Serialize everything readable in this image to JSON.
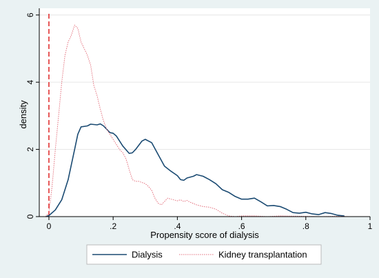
{
  "chart_data": {
    "type": "line",
    "xlabel": "Propensity score of dialysis",
    "ylabel": "density",
    "xlim": [
      -0.03,
      1.0
    ],
    "ylim": [
      0,
      6.2
    ],
    "x_ticks": [
      "0",
      ".2",
      ".4",
      ".6",
      ".8",
      "1"
    ],
    "y_ticks": [
      "0",
      "2",
      "4",
      "6"
    ],
    "grid": "horizontal",
    "legend_position": "bottom",
    "reference_line": {
      "x": 0,
      "style": "dashed",
      "color": "#e03030"
    },
    "series": [
      {
        "name": "Dialysis",
        "color": "#1a4a72",
        "style": "solid",
        "points": [
          [
            -0.01,
            0.0
          ],
          [
            0.0,
            0.03
          ],
          [
            0.02,
            0.2
          ],
          [
            0.04,
            0.5
          ],
          [
            0.06,
            1.1
          ],
          [
            0.08,
            2.0
          ],
          [
            0.09,
            2.45
          ],
          [
            0.1,
            2.67
          ],
          [
            0.12,
            2.7
          ],
          [
            0.13,
            2.75
          ],
          [
            0.15,
            2.73
          ],
          [
            0.16,
            2.76
          ],
          [
            0.17,
            2.7
          ],
          [
            0.19,
            2.5
          ],
          [
            0.2,
            2.48
          ],
          [
            0.21,
            2.4
          ],
          [
            0.23,
            2.1
          ],
          [
            0.25,
            1.88
          ],
          [
            0.26,
            1.9
          ],
          [
            0.27,
            2.0
          ],
          [
            0.29,
            2.25
          ],
          [
            0.3,
            2.3
          ],
          [
            0.32,
            2.2
          ],
          [
            0.34,
            1.85
          ],
          [
            0.36,
            1.5
          ],
          [
            0.38,
            1.35
          ],
          [
            0.4,
            1.22
          ],
          [
            0.41,
            1.1
          ],
          [
            0.42,
            1.08
          ],
          [
            0.43,
            1.15
          ],
          [
            0.45,
            1.2
          ],
          [
            0.46,
            1.25
          ],
          [
            0.48,
            1.2
          ],
          [
            0.5,
            1.1
          ],
          [
            0.52,
            0.98
          ],
          [
            0.54,
            0.8
          ],
          [
            0.56,
            0.72
          ],
          [
            0.58,
            0.6
          ],
          [
            0.6,
            0.52
          ],
          [
            0.62,
            0.52
          ],
          [
            0.64,
            0.55
          ],
          [
            0.66,
            0.44
          ],
          [
            0.68,
            0.32
          ],
          [
            0.7,
            0.33
          ],
          [
            0.72,
            0.3
          ],
          [
            0.74,
            0.22
          ],
          [
            0.76,
            0.12
          ],
          [
            0.78,
            0.1
          ],
          [
            0.8,
            0.13
          ],
          [
            0.82,
            0.08
          ],
          [
            0.84,
            0.06
          ],
          [
            0.86,
            0.12
          ],
          [
            0.88,
            0.09
          ],
          [
            0.9,
            0.04
          ],
          [
            0.92,
            0.02
          ]
        ]
      },
      {
        "name": "Kidney transplantation",
        "color": "#e36f7c",
        "style": "dotted",
        "points": [
          [
            -0.01,
            0.0
          ],
          [
            0.0,
            0.12
          ],
          [
            0.01,
            0.9
          ],
          [
            0.02,
            2.0
          ],
          [
            0.03,
            3.0
          ],
          [
            0.04,
            4.0
          ],
          [
            0.05,
            4.8
          ],
          [
            0.06,
            5.2
          ],
          [
            0.07,
            5.4
          ],
          [
            0.075,
            5.55
          ],
          [
            0.08,
            5.7
          ],
          [
            0.09,
            5.6
          ],
          [
            0.1,
            5.2
          ],
          [
            0.11,
            5.0
          ],
          [
            0.12,
            4.8
          ],
          [
            0.13,
            4.5
          ],
          [
            0.14,
            3.9
          ],
          [
            0.15,
            3.6
          ],
          [
            0.16,
            3.2
          ],
          [
            0.17,
            2.85
          ],
          [
            0.18,
            2.6
          ],
          [
            0.19,
            2.45
          ],
          [
            0.2,
            2.3
          ],
          [
            0.21,
            2.15
          ],
          [
            0.22,
            2.0
          ],
          [
            0.23,
            1.9
          ],
          [
            0.24,
            1.72
          ],
          [
            0.25,
            1.4
          ],
          [
            0.26,
            1.1
          ],
          [
            0.27,
            1.05
          ],
          [
            0.28,
            1.05
          ],
          [
            0.3,
            0.98
          ],
          [
            0.31,
            0.9
          ],
          [
            0.32,
            0.78
          ],
          [
            0.33,
            0.55
          ],
          [
            0.34,
            0.4
          ],
          [
            0.35,
            0.35
          ],
          [
            0.36,
            0.45
          ],
          [
            0.37,
            0.55
          ],
          [
            0.38,
            0.52
          ],
          [
            0.4,
            0.47
          ],
          [
            0.41,
            0.5
          ],
          [
            0.42,
            0.45
          ],
          [
            0.43,
            0.48
          ],
          [
            0.44,
            0.43
          ],
          [
            0.46,
            0.35
          ],
          [
            0.48,
            0.3
          ],
          [
            0.5,
            0.28
          ],
          [
            0.52,
            0.22
          ],
          [
            0.54,
            0.1
          ],
          [
            0.56,
            0.02
          ],
          [
            0.58,
            0.0
          ],
          [
            0.6,
            0.02
          ],
          [
            0.64,
            0.02
          ],
          [
            0.68,
            0.0
          ],
          [
            0.72,
            0.02
          ],
          [
            0.78,
            0.01
          ],
          [
            0.85,
            0.0
          ],
          [
            0.9,
            0.01
          ],
          [
            0.94,
            0.0
          ]
        ]
      }
    ]
  }
}
